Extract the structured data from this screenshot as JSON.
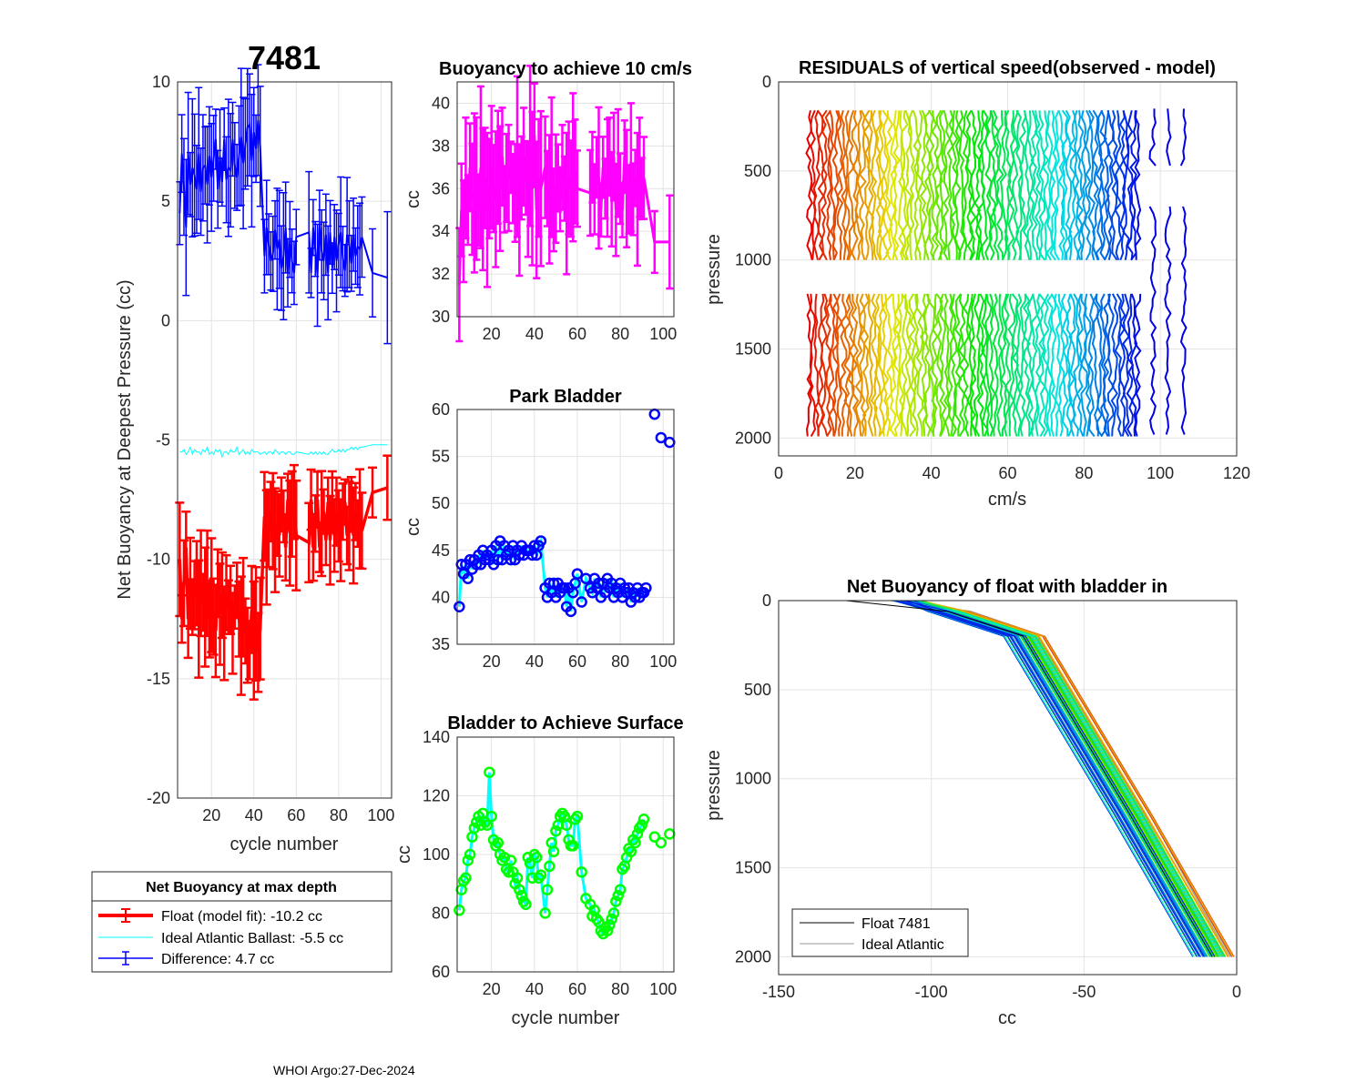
{
  "figure": {
    "float_id": "7481",
    "footer": "WHOI Argo:27-Dec-2024",
    "colors": {
      "float": "#ff0000",
      "ideal": "#00ffff",
      "difference": "#0000ff",
      "buoyancy": "#ff00ff",
      "park_marker": "#0000ff",
      "park_line": "#00ffff",
      "surface_marker": "#00ff00",
      "surface_line": "#00ffff",
      "grid": "#e3e3e3",
      "ideal_gray": "#9a9a9a"
    }
  },
  "legend_main": {
    "title": "Net Buoyancy at max depth",
    "items": [
      "Float (model fit): -10.2 cc",
      "Ideal Atlantic Ballast:  -5.5 cc",
      "Difference:   4.7 cc"
    ]
  },
  "legend_nb": {
    "items": [
      "Float 7481",
      "Ideal Atlantic"
    ]
  },
  "chart_data": [
    {
      "id": "main",
      "type": "line",
      "title": "7481",
      "xlabel": "cycle number",
      "ylabel": "Net Buoyancy at Deepest Pressure (cc)",
      "xlim": [
        4,
        105
      ],
      "ylim": [
        -20,
        10
      ],
      "xticks": [
        20,
        40,
        60,
        80,
        100
      ],
      "yticks": [
        10,
        5,
        0,
        -5,
        -10,
        -15,
        -20
      ],
      "x": [
        5,
        6,
        7,
        8,
        9,
        10,
        11,
        12,
        13,
        14,
        15,
        16,
        17,
        18,
        19,
        20,
        21,
        22,
        23,
        24,
        25,
        26,
        27,
        28,
        29,
        30,
        31,
        32,
        33,
        34,
        35,
        36,
        37,
        38,
        39,
        40,
        41,
        42,
        43,
        45,
        46,
        47,
        48,
        49,
        50,
        51,
        52,
        53,
        54,
        55,
        56,
        57,
        58,
        59,
        60,
        66,
        67,
        68,
        69,
        70,
        71,
        72,
        73,
        74,
        75,
        76,
        77,
        78,
        79,
        80,
        81,
        82,
        83,
        84,
        85,
        86,
        87,
        88,
        89,
        90,
        91,
        96,
        103
      ],
      "series": [
        {
          "name": "Float (model fit)",
          "values": [
            -10,
            -12.5,
            -11,
            -9.5,
            -12.5,
            -11,
            -12,
            -11.5,
            -11,
            -12.5,
            -11,
            -11.8,
            -12,
            -11,
            -12.5,
            -11.5,
            -12.4,
            -13,
            -11,
            -12.3,
            -11.5,
            -13.1,
            -11.4,
            -12,
            -11.7,
            -13.1,
            -12,
            -11.3,
            -12.5,
            -13.2,
            -12,
            -13,
            -13.6,
            -13.8,
            -12.1,
            -13.4,
            -12.7,
            -13.9,
            -12.9,
            -8.2,
            -9.5,
            -8.7,
            -8,
            -8.4,
            -9.2,
            -8.5,
            -9,
            -7.7,
            -8.2,
            -9.5,
            -7.5,
            -8.9,
            -8.1,
            -7.6,
            -9,
            -9.3,
            -7.5,
            -9.5,
            -8.5,
            -7.5,
            -9.5,
            -8.5,
            -8,
            -9.2,
            -7.6,
            -9.2,
            -7.6,
            -9,
            -8,
            -8.6,
            -9.2,
            -8,
            -7.6,
            -9,
            -8.6,
            -7.7,
            -9,
            -8,
            -8.5,
            -8.3,
            -8.8,
            -7.2,
            -7
          ]
        },
        {
          "name": "Ideal Atlantic Ballast",
          "values": [
            -5.5,
            -5.5,
            -5.4,
            -5.6,
            -5.5,
            -5.3,
            -5.6,
            -5.4,
            -5.5,
            -5.5,
            -5.6,
            -5.4,
            -5.5,
            -5.3,
            -5.6,
            -5.5,
            -5.6,
            -5.4,
            -5.5,
            -5.4,
            -5.7,
            -5.5,
            -5.5,
            -5.6,
            -5.4,
            -5.5,
            -5.5,
            -5.3,
            -5.6,
            -5.5,
            -5.4,
            -5.6,
            -5.5,
            -5.6,
            -5.4,
            -5.5,
            -5.5,
            -5.5,
            -5.6,
            -5.5,
            -5.6,
            -5.5,
            -5.5,
            -5.6,
            -5.4,
            -5.5,
            -5.6,
            -5.5,
            -5.5,
            -5.6,
            -5.5,
            -5.5,
            -5.6,
            -5.6,
            -5.5,
            -5.6,
            -5.5,
            -5.6,
            -5.5,
            -5.6,
            -5.5,
            -5.6,
            -5.5,
            -5.6,
            -5.6,
            -5.5,
            -5.4,
            -5.5,
            -5.5,
            -5.4,
            -5.5,
            -5.4,
            -5.5,
            -5.4,
            -5.4,
            -5.3,
            -5.4,
            -5.3,
            -5.4,
            -5.3,
            -5.3,
            -5.2,
            -5.2
          ]
        },
        {
          "name": "Difference",
          "values": [
            4.5,
            7,
            5.6,
            3.9,
            7,
            5.7,
            6.4,
            6.1,
            5.5,
            7,
            5.4,
            6.4,
            6.5,
            5.7,
            6.9,
            6,
            6.8,
            7.6,
            5.5,
            6.9,
            5.8,
            7.6,
            5.9,
            6.4,
            6.3,
            7.6,
            6.5,
            6,
            6.9,
            7.7,
            6.6,
            7.4,
            8.1,
            8.2,
            6.7,
            7.9,
            7.2,
            8.4,
            7.3,
            2.7,
            3.9,
            3.2,
            2.5,
            2.8,
            3.8,
            3,
            3.4,
            2.2,
            2.7,
            3.9,
            2,
            3.4,
            2.5,
            2,
            3.5,
            3.7,
            2,
            3.9,
            3,
            1.9,
            4,
            2.9,
            2.5,
            3.6,
            2,
            3.7,
            2.2,
            3.5,
            2.5,
            3.2,
            3.7,
            2.6,
            2.1,
            3.6,
            3.2,
            2.4,
            3.6,
            2.7,
            3.1,
            3,
            3.5,
            2,
            1.8
          ]
        }
      ],
      "annotations": [
        "7481"
      ]
    },
    {
      "id": "buoy",
      "type": "line",
      "title": "Buoyancy to achieve 10 cm/s",
      "xlabel": "",
      "ylabel": "cc",
      "xlim": [
        4,
        105
      ],
      "ylim": [
        30,
        41
      ],
      "xticks": [
        20,
        40,
        60,
        80,
        100
      ],
      "yticks": [
        40,
        38,
        36,
        34,
        32,
        30
      ],
      "x": [
        5,
        6,
        7,
        8,
        9,
        10,
        11,
        12,
        13,
        14,
        15,
        16,
        17,
        18,
        19,
        20,
        21,
        22,
        23,
        24,
        25,
        26,
        27,
        28,
        29,
        30,
        31,
        32,
        33,
        34,
        35,
        36,
        37,
        38,
        39,
        40,
        41,
        42,
        43,
        45,
        46,
        47,
        48,
        49,
        50,
        51,
        52,
        53,
        54,
        55,
        56,
        57,
        58,
        59,
        60,
        66,
        67,
        68,
        69,
        70,
        71,
        72,
        73,
        74,
        75,
        76,
        77,
        78,
        79,
        80,
        81,
        82,
        83,
        84,
        85,
        86,
        87,
        88,
        89,
        90,
        91,
        96,
        103
      ],
      "values": [
        31.5,
        35,
        34,
        36.5,
        35,
        37,
        35.5,
        35.8,
        36,
        35,
        37,
        35.5,
        36.5,
        35,
        36,
        37,
        36,
        35.5,
        37,
        36,
        37.5,
        35.5,
        36.5,
        36.5,
        37,
        36,
        35.8,
        37.5,
        35,
        36.5,
        37.5,
        36.5,
        35.5,
        38,
        36,
        38.5,
        35,
        36.5,
        36,
        37,
        36,
        35.5,
        37,
        35,
        36,
        36.5,
        35.5,
        37,
        36,
        35.3,
        36.5,
        36,
        37,
        36.8,
        36,
        35.8,
        37,
        35.5,
        37,
        36.5,
        35,
        37,
        36,
        36.5,
        37.5,
        35.5,
        37.5,
        35,
        37.2,
        36,
        35,
        37.5,
        36,
        35.5,
        37,
        35.5,
        36.5,
        35.5,
        37,
        36,
        36.5,
        33.5,
        33.5
      ]
    },
    {
      "id": "park",
      "type": "scatter",
      "title": "Park Bladder",
      "xlabel": "",
      "ylabel": "cc",
      "xlim": [
        4,
        105
      ],
      "ylim": [
        35,
        60
      ],
      "xticks": [
        20,
        40,
        60,
        80,
        100
      ],
      "yticks": [
        60,
        55,
        50,
        45,
        40,
        35
      ],
      "x": [
        5,
        6,
        7,
        8,
        9,
        10,
        11,
        12,
        13,
        14,
        15,
        16,
        17,
        18,
        19,
        20,
        21,
        22,
        23,
        24,
        25,
        26,
        27,
        28,
        29,
        30,
        31,
        32,
        33,
        34,
        35,
        36,
        37,
        38,
        39,
        40,
        41,
        42,
        43,
        45,
        46,
        47,
        48,
        49,
        50,
        51,
        52,
        53,
        54,
        55,
        56,
        57,
        58,
        59,
        60,
        62,
        64,
        66,
        67,
        68,
        69,
        70,
        71,
        72,
        73,
        74,
        75,
        76,
        77,
        78,
        79,
        80,
        81,
        82,
        83,
        84,
        85,
        86,
        87,
        88,
        89,
        90,
        91,
        92,
        96,
        99,
        103
      ],
      "values": [
        39,
        43.5,
        42.5,
        43.5,
        42,
        44,
        43,
        44,
        43.5,
        44.5,
        43.5,
        45,
        44,
        44.5,
        44,
        45,
        43.5,
        45.5,
        44,
        46,
        44,
        45.5,
        44.5,
        45,
        44,
        45.5,
        44,
        45,
        44.5,
        45.5,
        44.5,
        45,
        45,
        45,
        44.5,
        45.5,
        44.5,
        45.5,
        46,
        41,
        40,
        41.5,
        40.5,
        41.5,
        40,
        41.5,
        40.5,
        41,
        41,
        39,
        41,
        38.5,
        40.5,
        41.5,
        42.5,
        39.5,
        42,
        41,
        40.5,
        42,
        41,
        41.5,
        40,
        41.5,
        40.5,
        42,
        41,
        41.5,
        40,
        41,
        40.5,
        41.5,
        40,
        41,
        40.5,
        41,
        39.5,
        40.5,
        40,
        41,
        40,
        40.5,
        40.5,
        41,
        59.5,
        57,
        56.5
      ]
    },
    {
      "id": "surface",
      "type": "scatter",
      "title": "Bladder to Achieve Surface",
      "xlabel": "cycle number",
      "ylabel": "cc",
      "xlim": [
        4,
        105
      ],
      "ylim": [
        60,
        140
      ],
      "xticks": [
        20,
        40,
        60,
        80,
        100
      ],
      "yticks": [
        140,
        120,
        100,
        80,
        60
      ],
      "x": [
        5,
        6,
        7,
        8,
        9,
        10,
        11,
        12,
        13,
        14,
        15,
        16,
        17,
        18,
        19,
        20,
        21,
        22,
        23,
        24,
        25,
        26,
        27,
        28,
        29,
        30,
        31,
        32,
        33,
        34,
        35,
        36,
        37,
        38,
        39,
        40,
        41,
        42,
        43,
        45,
        46,
        47,
        48,
        49,
        50,
        51,
        52,
        53,
        54,
        55,
        56,
        57,
        58,
        59,
        60,
        62,
        64,
        66,
        67,
        68,
        69,
        70,
        71,
        72,
        73,
        74,
        75,
        76,
        77,
        78,
        79,
        80,
        81,
        82,
        83,
        84,
        85,
        86,
        87,
        88,
        89,
        90,
        91,
        96,
        99,
        103
      ],
      "values": [
        81,
        88,
        91,
        92,
        98,
        100,
        106,
        109,
        111,
        113,
        110,
        114,
        111,
        110,
        128,
        113,
        105,
        103,
        104,
        100,
        98,
        99,
        95,
        94,
        98,
        94,
        90,
        92,
        88,
        86,
        84,
        83,
        99,
        97,
        92,
        100,
        99,
        92,
        93,
        80,
        88,
        96,
        104,
        101,
        108,
        110,
        113,
        114,
        113,
        110,
        105,
        103,
        103,
        112,
        113,
        94,
        85,
        83,
        79,
        81,
        78,
        77,
        74,
        73,
        75,
        74,
        76,
        78,
        80,
        84,
        86,
        88,
        95,
        96,
        99,
        102,
        101,
        105,
        104,
        107,
        109,
        110,
        112,
        106,
        104,
        107
      ]
    },
    {
      "id": "resid",
      "type": "line",
      "title": "RESIDUALS of vertical speed(observed - model)",
      "xlabel": "cm/s",
      "ylabel": "pressure",
      "xlim": [
        0,
        120
      ],
      "ylim": [
        0,
        2100
      ],
      "yreversed": true,
      "xticks": [
        0,
        20,
        40,
        60,
        80,
        100,
        120
      ],
      "yticks": [
        0,
        500,
        1000,
        1500,
        2000
      ],
      "n_profiles": 87,
      "profile_offset_start": 8,
      "profile_offset_step": 1,
      "upper_range": [
        160,
        1000
      ],
      "lower_range": [
        1190,
        2000
      ],
      "deep_profile_offsets": [
        98,
        102,
        106
      ]
    },
    {
      "id": "nb",
      "type": "line",
      "title": "Net Buoyancy of float with bladder in",
      "xlabel": "cc",
      "ylabel": "pressure",
      "xlim": [
        -150,
        0
      ],
      "ylim": [
        0,
        2100
      ],
      "yreversed": true,
      "xticks": [
        -150,
        -100,
        -50,
        0
      ],
      "yticks": [
        0,
        500,
        1000,
        1500,
        2000
      ],
      "float_profile": {
        "pressure": [
          0,
          60,
          200,
          1200,
          2000
        ],
        "cc": [
          -128,
          -95,
          -70,
          -35,
          -8
        ]
      },
      "ideal_profile": {
        "pressure": [
          0,
          60,
          200,
          1200,
          2000
        ],
        "cc": [
          -112,
          -90,
          -66,
          -31,
          -5
        ]
      }
    }
  ]
}
